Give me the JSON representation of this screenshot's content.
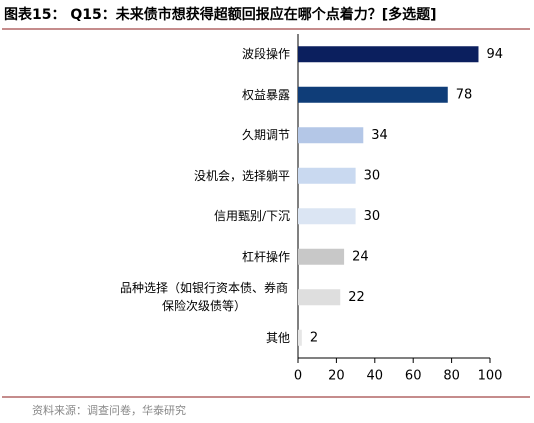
{
  "chart_data": {
    "type": "hbar",
    "title": "图表15： Q15：未来债市想获得超额回报应在哪个点着力？[多选题]",
    "source": "资料来源：调查问卷，华泰研究",
    "categories": [
      "波段操作",
      "权益暴露",
      "久期调节",
      "没机会，选择躺平",
      "信用甄别/下沉",
      "杠杆操作",
      "品种选择（如银行资本债、券商保险次级债等）",
      "其他"
    ],
    "values": [
      94,
      78,
      34,
      30,
      30,
      24,
      22,
      2
    ],
    "colors": [
      "#0b1f5e",
      "#0f3d78",
      "#b4c7e7",
      "#c9d9f0",
      "#dbe5f3",
      "#c8c8c8",
      "#dedede",
      "#e6e6e6"
    ],
    "xlim": [
      0,
      100
    ],
    "xticks": [
      0,
      20,
      40,
      60,
      80,
      100
    ]
  }
}
